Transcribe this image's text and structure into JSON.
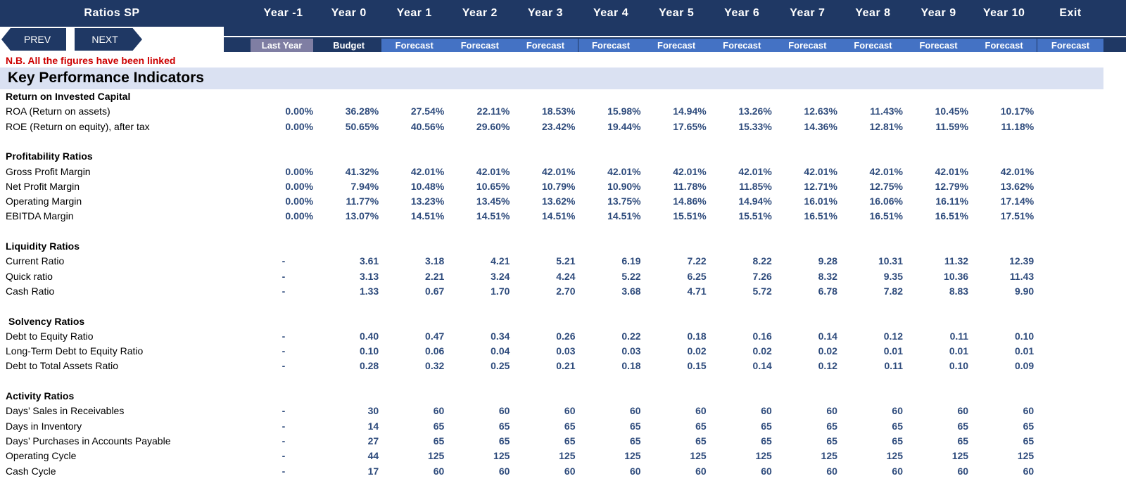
{
  "header": {
    "title": "Ratios SP",
    "years": [
      "Year -1",
      "Year 0",
      "Year 1",
      "Year 2",
      "Year 3",
      "Year 4",
      "Year 5",
      "Year 6",
      "Year 7",
      "Year 8",
      "Year 9",
      "Year 10"
    ],
    "exit": "Exit",
    "labels": [
      "Last Year",
      "Budget",
      "Forecast",
      "Forecast",
      "Forecast",
      "Forecast",
      "Forecast",
      "Forecast",
      "Forecast",
      "Forecast",
      "Forecast",
      "Forecast",
      "Forecast"
    ]
  },
  "nav": {
    "prev": "PREV",
    "next": "NEXT"
  },
  "note": "N.B. All the figures have been linked",
  "kpi_title": "Key Performance Indicators",
  "sections": [
    {
      "title": "Return on Invested Capital",
      "rows": [
        {
          "label": "ROA (Return on assets)",
          "values": [
            "0.00%",
            "36.28%",
            "27.54%",
            "22.11%",
            "18.53%",
            "15.98%",
            "14.94%",
            "13.26%",
            "12.63%",
            "11.43%",
            "10.45%",
            "10.17%"
          ]
        },
        {
          "label": "ROE (Return on equity), after tax",
          "values": [
            "0.00%",
            "50.65%",
            "40.56%",
            "29.60%",
            "23.42%",
            "19.44%",
            "17.65%",
            "15.33%",
            "14.36%",
            "12.81%",
            "11.59%",
            "11.18%"
          ]
        }
      ]
    },
    {
      "title": "Profitability Ratios",
      "rows": [
        {
          "label": "Gross Profit Margin",
          "values": [
            "0.00%",
            "41.32%",
            "42.01%",
            "42.01%",
            "42.01%",
            "42.01%",
            "42.01%",
            "42.01%",
            "42.01%",
            "42.01%",
            "42.01%",
            "42.01%"
          ]
        },
        {
          "label": "Net Profit Margin",
          "values": [
            "0.00%",
            "7.94%",
            "10.48%",
            "10.65%",
            "10.79%",
            "10.90%",
            "11.78%",
            "11.85%",
            "12.71%",
            "12.75%",
            "12.79%",
            "13.62%"
          ]
        },
        {
          "label": "Operating Margin",
          "values": [
            "0.00%",
            "11.77%",
            "13.23%",
            "13.45%",
            "13.62%",
            "13.75%",
            "14.86%",
            "14.94%",
            "16.01%",
            "16.06%",
            "16.11%",
            "17.14%"
          ]
        },
        {
          "label": "EBITDA Margin",
          "values": [
            "0.00%",
            "13.07%",
            "14.51%",
            "14.51%",
            "14.51%",
            "14.51%",
            "15.51%",
            "15.51%",
            "16.51%",
            "16.51%",
            "16.51%",
            "17.51%"
          ]
        }
      ]
    },
    {
      "title": "Liquidity Ratios",
      "rows": [
        {
          "label": "Current Ratio",
          "values": [
            "-",
            "3.61",
            "3.18",
            "4.21",
            "5.21",
            "6.19",
            "7.22",
            "8.22",
            "9.28",
            "10.31",
            "11.32",
            "12.39"
          ]
        },
        {
          "label": "Quick ratio",
          "values": [
            "-",
            "3.13",
            "2.21",
            "3.24",
            "4.24",
            "5.22",
            "6.25",
            "7.26",
            "8.32",
            "9.35",
            "10.36",
            "11.43"
          ]
        },
        {
          "label": "Cash Ratio",
          "values": [
            "-",
            "1.33",
            "0.67",
            "1.70",
            "2.70",
            "3.68",
            "4.71",
            "5.72",
            "6.78",
            "7.82",
            "8.83",
            "9.90"
          ]
        }
      ]
    },
    {
      "title": "Solvency Ratios",
      "rows": [
        {
          "label": "Debt to Equity Ratio",
          "values": [
            "-",
            "0.40",
            "0.47",
            "0.34",
            "0.26",
            "0.22",
            "0.18",
            "0.16",
            "0.14",
            "0.12",
            "0.11",
            "0.10"
          ]
        },
        {
          "label": "Long-Term Debt to Equity Ratio",
          "values": [
            "-",
            "0.10",
            "0.06",
            "0.04",
            "0.03",
            "0.03",
            "0.02",
            "0.02",
            "0.02",
            "0.01",
            "0.01",
            "0.01"
          ]
        },
        {
          "label": "Debt to Total Assets Ratio",
          "values": [
            "-",
            "0.28",
            "0.32",
            "0.25",
            "0.21",
            "0.18",
            "0.15",
            "0.14",
            "0.12",
            "0.11",
            "0.10",
            "0.09"
          ]
        }
      ]
    },
    {
      "title": "Activity Ratios",
      "rows": [
        {
          "label": "Days’ Sales in Receivables",
          "values": [
            "-",
            "30",
            "60",
            "60",
            "60",
            "60",
            "60",
            "60",
            "60",
            "60",
            "60",
            "60"
          ]
        },
        {
          "label": "Days in Inventory",
          "values": [
            "-",
            "14",
            "65",
            "65",
            "65",
            "65",
            "65",
            "65",
            "65",
            "65",
            "65",
            "65"
          ]
        },
        {
          "label": "Days’ Purchases in Accounts Payable",
          "values": [
            "-",
            "27",
            "65",
            "65",
            "65",
            "65",
            "65",
            "65",
            "65",
            "65",
            "65",
            "65"
          ]
        },
        {
          "label": "Operating Cycle",
          "values": [
            "-",
            "44",
            "125",
            "125",
            "125",
            "125",
            "125",
            "125",
            "125",
            "125",
            "125",
            "125"
          ]
        },
        {
          "label": "Cash Cycle",
          "values": [
            "-",
            "17",
            "60",
            "60",
            "60",
            "60",
            "60",
            "60",
            "60",
            "60",
            "60",
            "60"
          ]
        }
      ]
    }
  ]
}
